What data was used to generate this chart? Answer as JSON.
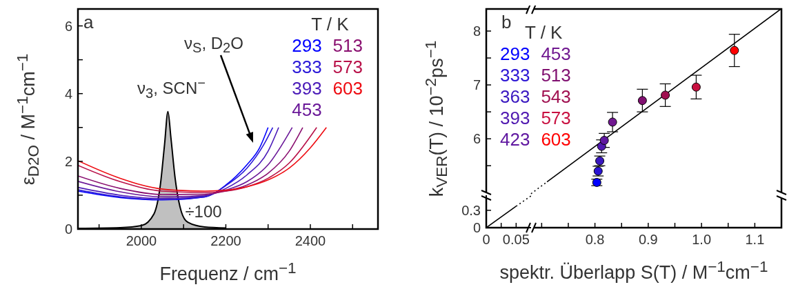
{
  "chart_data": [
    {
      "type": "line",
      "xlabel": "Frequenz / cm$^{−1}$",
      "ylabel": "ε$_{D2O}$ / M$^{−1}$cm$^{−1}$",
      "legend_title": "T / K",
      "legend": "top right",
      "annotations": [
        "a",
        {
          "text": "ν$_{3}$, SCN$^{−}$",
          "x": 2063,
          "y": 3.47
        },
        "ν$_{S}$, D$_{2}$O",
        "÷100"
      ],
      "xlim": [
        1850,
        2560
      ],
      "ylim": [
        0,
        6.5
      ],
      "xticks": [
        {
          "value": 1900,
          "label": null
        },
        2000,
        {
          "value": 2100,
          "label": null
        },
        2200,
        {
          "value": 2300,
          "label": null
        },
        2400,
        {
          "value": 2500,
          "label": null
        }
      ],
      "yticks": [
        0,
        {
          "value": 1,
          "label": null
        },
        2,
        {
          "value": 3,
          "label": null
        },
        4,
        {
          "value": 5,
          "label": null
        },
        6
      ],
      "series": [
        {
          "type": "area",
          "color": "#c0c0c0",
          "x": [
            1850,
            1950,
            2000,
            2030,
            2045,
            2055,
            2063,
            2070,
            2080,
            2095,
            2110,
            2150,
            2200
          ],
          "values": [
            0.02,
            0.04,
            0.1,
            0.45,
            1.3,
            2.5,
            3.47,
            2.7,
            1.5,
            0.5,
            0.2,
            0.06,
            0.03
          ]
        },
        {
          "name": "293",
          "color": "#0000ff",
          "x": [
            1850,
            1950,
            2050,
            2150,
            2200,
            2250,
            2280,
            2300
          ],
          "values": [
            1.12,
            0.93,
            0.86,
            0.95,
            1.3,
            1.9,
            2.4,
            3.0
          ]
        },
        {
          "name": "333",
          "color": "#2a18d8",
          "x": [
            1850,
            1950,
            2050,
            2150,
            2200,
            2250,
            2290,
            2311
          ],
          "values": [
            1.16,
            0.95,
            0.87,
            0.95,
            1.28,
            1.8,
            2.5,
            3.0
          ]
        },
        {
          "name": "393",
          "color": "#4a1ab8",
          "x": [
            1850,
            1950,
            2050,
            2150,
            2200,
            2250,
            2300,
            2325
          ],
          "values": [
            1.23,
            1.0,
            0.9,
            0.98,
            1.2,
            1.6,
            2.3,
            3.0
          ]
        },
        {
          "name": "453",
          "color": "#6a1898",
          "x": [
            1850,
            1950,
            2050,
            2150,
            2200,
            2250,
            2300,
            2357
          ],
          "values": [
            1.41,
            1.1,
            0.95,
            1.0,
            1.15,
            1.4,
            1.9,
            3.0
          ]
        },
        {
          "name": "513",
          "color": "#8a1070",
          "x": [
            1850,
            1950,
            2050,
            2150,
            2200,
            2250,
            2300,
            2350,
            2382
          ],
          "values": [
            1.57,
            1.2,
            1.02,
            1.03,
            1.12,
            1.3,
            1.65,
            2.3,
            3.0
          ]
        },
        {
          "name": "573",
          "color": "#b81048",
          "x": [
            1850,
            1950,
            2050,
            2150,
            2200,
            2250,
            2300,
            2350,
            2415
          ],
          "values": [
            1.88,
            1.4,
            1.12,
            1.08,
            1.12,
            1.25,
            1.5,
            1.95,
            3.0
          ]
        },
        {
          "name": "603",
          "color": "#ee0a10",
          "x": [
            1850,
            1950,
            2050,
            2150,
            2200,
            2250,
            2300,
            2350,
            2400,
            2438
          ],
          "values": [
            2.02,
            1.5,
            1.18,
            1.12,
            1.15,
            1.25,
            1.45,
            1.8,
            2.4,
            3.0
          ]
        }
      ]
    },
    {
      "type": "scatter",
      "xlabel": "spektr. Überlapp S(T) / M$^{−1}$cm$^{−1}$",
      "ylabel": "k$_{VER}$(T) / 10$^{−2}$ps$^{−1}$",
      "legend_title": "T / K",
      "legend": "top left",
      "annotations": [
        "b"
      ],
      "xlim": [
        0.596,
        1.15
      ],
      "ylim": [
        4.35,
        8.41
      ],
      "xticks": [
        {
          "value": 0.7,
          "label": null
        },
        {
          "value": 0.75,
          "label": null
        },
        0.8,
        {
          "value": 0.85,
          "label": null
        },
        0.9,
        {
          "value": 0.95,
          "label": null
        },
        {
          "value": 1.0,
          "label": "1.0"
        },
        {
          "value": 1.05,
          "label": null
        },
        1.1
      ],
      "yticks": [
        {
          "value": 5.5,
          "label": null
        },
        6,
        {
          "value": 6.5,
          "label": null
        },
        7,
        {
          "value": 7.5,
          "label": null
        },
        8
      ],
      "series": [
        {
          "type": "line",
          "color": "#000000",
          "line_style": "dotted",
          "x": [
            0.68,
            0.71
          ],
          "values": [
            4.98,
            5.2
          ]
        },
        {
          "type": "line",
          "color": "#000000",
          "line_style": "solid",
          "x": [
            0.71,
            1.149
          ],
          "values": [
            5.2,
            8.41
          ]
        },
        {
          "name": "293",
          "color": "#0000ff",
          "marker": "circle",
          "x": [
            0.8035
          ],
          "values": [
            5.19
          ],
          "errors": [
            0.06
          ]
        },
        {
          "name": "333",
          "color": "#2a14d4",
          "marker": "circle",
          "x": [
            0.806
          ],
          "values": [
            5.4
          ],
          "errors": [
            0.09
          ]
        },
        {
          "name": "363",
          "color": "#3a18c0",
          "marker": "circle",
          "x": [
            0.809
          ],
          "values": [
            5.59
          ],
          "errors": [
            0.09
          ]
        },
        {
          "name": "393",
          "color": "#5018b0",
          "marker": "circle",
          "x": [
            0.8125
          ],
          "values": [
            5.86
          ],
          "errors": [
            0.12
          ]
        },
        {
          "name": "423",
          "color": "#6018a0",
          "marker": "circle",
          "x": [
            0.8175
          ],
          "values": [
            5.97
          ],
          "errors": [
            0.13
          ]
        },
        {
          "name": "453",
          "color": "#701890",
          "marker": "circle",
          "x": [
            0.833
          ],
          "values": [
            6.31
          ],
          "errors": [
            0.18
          ]
        },
        {
          "name": "513",
          "color": "#801070",
          "marker": "circle",
          "x": [
            0.889
          ],
          "values": [
            6.71
          ],
          "errors": [
            0.21
          ]
        },
        {
          "name": "543",
          "color": "#a01050",
          "marker": "circle",
          "x": [
            0.932
          ],
          "values": [
            6.81
          ],
          "errors": [
            0.21
          ]
        },
        {
          "name": "573",
          "color": "#c81040",
          "marker": "circle",
          "x": [
            0.99
          ],
          "values": [
            6.96
          ],
          "errors": [
            0.22
          ]
        },
        {
          "name": "603",
          "color": "#ff0000",
          "marker": "circle",
          "x": [
            1.0617
          ],
          "values": [
            7.64
          ],
          "errors": [
            0.3
          ]
        }
      ]
    },
    {
      "type": "line",
      "xlim": [
        0,
        0.075
      ],
      "ylim": [
        0,
        0.56
      ],
      "xticks": [
        0,
        {
          "value": 0.025,
          "label": null
        },
        0.05
      ],
      "yticks": [
        0,
        0.3
      ],
      "series": [
        {
          "color": "#000000",
          "line_style": "solid",
          "x": [
            0,
            0.05
          ],
          "values": [
            0,
            0.37
          ]
        },
        {
          "color": "#000000",
          "line_style": "dotted",
          "x": [
            0.05,
            0.075
          ],
          "values": [
            0.37,
            0.55
          ]
        }
      ]
    }
  ]
}
